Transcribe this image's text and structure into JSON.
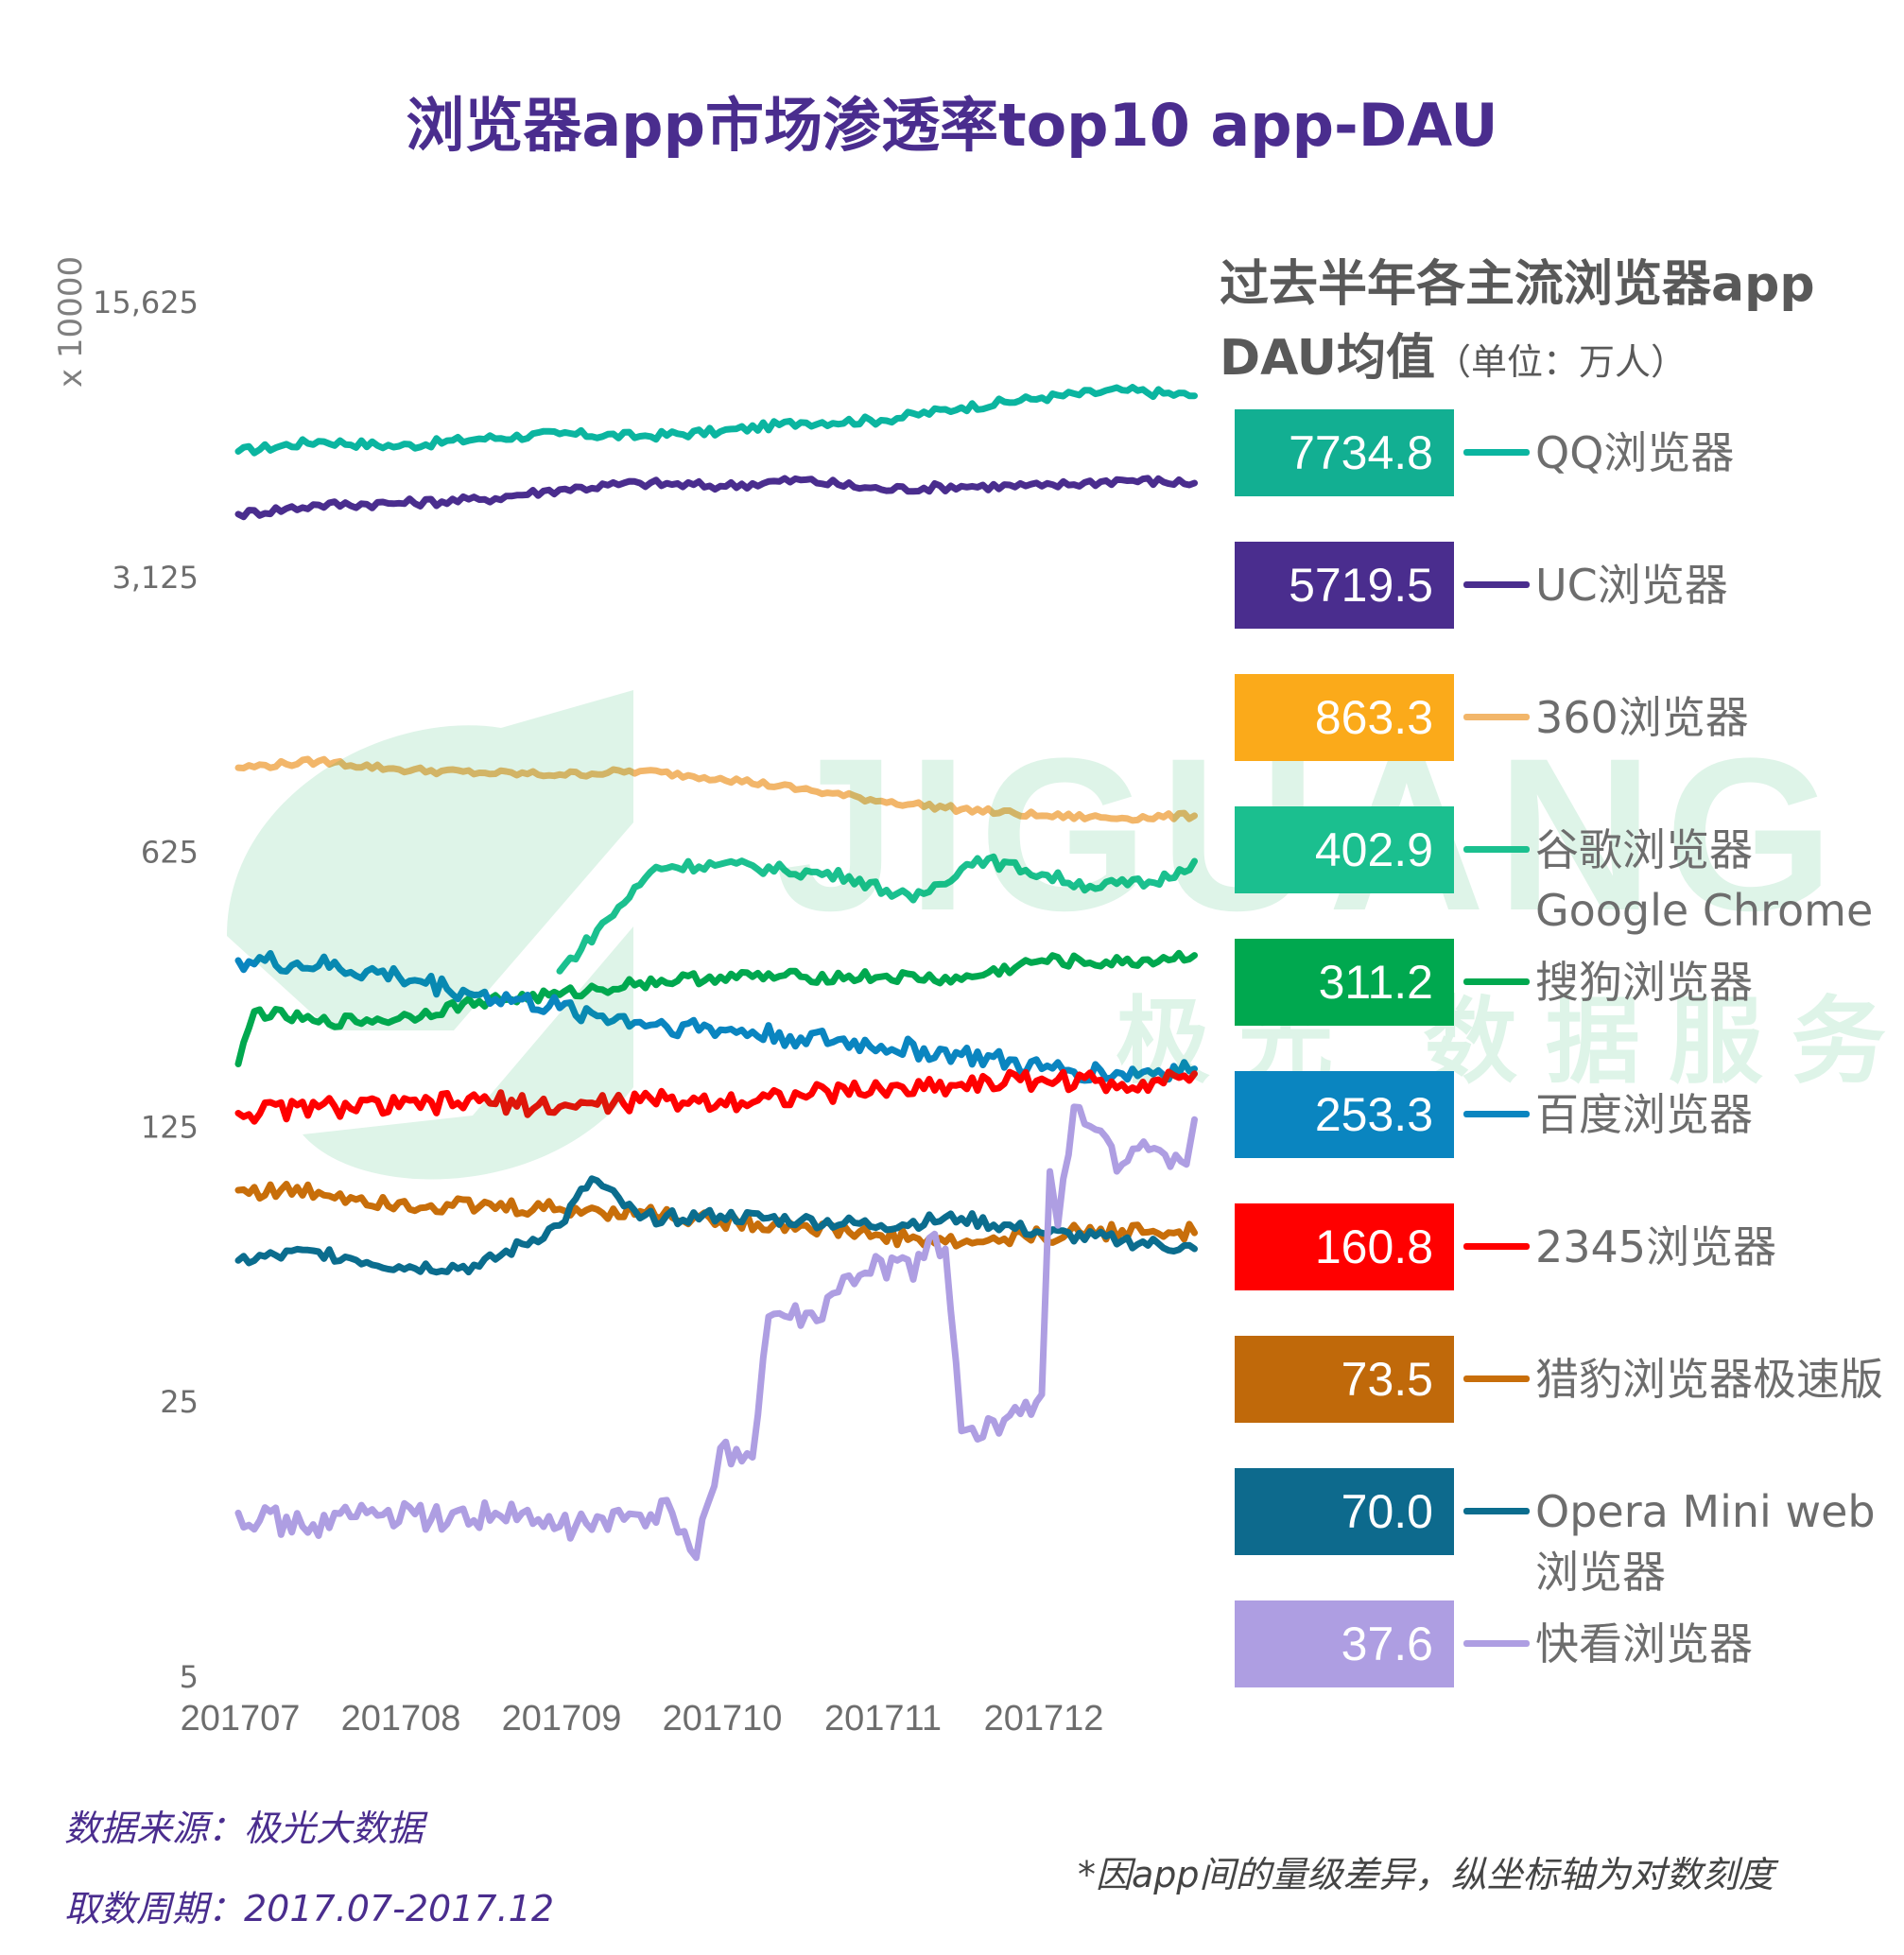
{
  "title": "浏览器app市场渗透率top10 app-DAU",
  "side_title_line1": "过去半年各主流浏览器app",
  "side_title_line2": "DAU均值",
  "side_title_unit": "（单位：万人）",
  "footer_source": "数据来源：极光大数据",
  "footer_period": "取数周期：2017.07-2017.12",
  "footer_note": "*因app间的量级差异，纵坐标轴为对数刻度",
  "watermark": {
    "text": "JIGUANG",
    "text_cn": "极光 数据服务"
  },
  "chart_data": {
    "type": "line",
    "title": "浏览器app市场渗透率top10 app-DAU",
    "yscale": "log",
    "ylabel": "x 10000",
    "ylim": [
      5,
      15625
    ],
    "yticks": [
      5,
      25,
      125,
      625,
      3125,
      15625
    ],
    "ytick_labels": [
      "5",
      "25",
      "125",
      "625",
      "3,125",
      "15,625"
    ],
    "xtick_labels": [
      "201707",
      "201708",
      "201709",
      "201710",
      "201711",
      "201712"
    ],
    "series": [
      {
        "name": "QQ浏览器",
        "mean": "7734.8",
        "color": "#0BB5A0",
        "box": "#12AF92",
        "points": [
          [
            0,
            6500
          ],
          [
            0.5,
            6900
          ],
          [
            1,
            6700
          ],
          [
            1.5,
            7000
          ],
          [
            2,
            7200
          ],
          [
            2.5,
            7100
          ],
          [
            3,
            7300
          ],
          [
            3.5,
            7700
          ],
          [
            4,
            7800
          ],
          [
            4.5,
            8400
          ],
          [
            5,
            8900
          ],
          [
            5.5,
            9300
          ],
          [
            5.95,
            9000
          ]
        ]
      },
      {
        "name": "UC浏览器",
        "mean": "5719.5",
        "color": "#4A2D8E",
        "box": "#4A2D8E",
        "points": [
          [
            0,
            4500
          ],
          [
            0.5,
            4750
          ],
          [
            1,
            4800
          ],
          [
            1.5,
            4900
          ],
          [
            2,
            5200
          ],
          [
            2.5,
            5400
          ],
          [
            3,
            5300
          ],
          [
            3.5,
            5500
          ],
          [
            4,
            5200
          ],
          [
            4.5,
            5300
          ],
          [
            5,
            5300
          ],
          [
            5.5,
            5500
          ],
          [
            5.95,
            5400
          ]
        ]
      },
      {
        "name": "360浏览器",
        "mean": "863.3",
        "color": "#F2B66A",
        "box": "#FBAA1A",
        "points": [
          [
            0,
            1020
          ],
          [
            0.5,
            1060
          ],
          [
            1,
            1010
          ],
          [
            1.5,
            990
          ],
          [
            2,
            980
          ],
          [
            2.5,
            1000
          ],
          [
            3,
            960
          ],
          [
            3.5,
            900
          ],
          [
            4,
            840
          ],
          [
            4.5,
            800
          ],
          [
            5,
            770
          ],
          [
            5.5,
            760
          ],
          [
            5.95,
            770
          ]
        ]
      },
      {
        "name": "谷歌浏览器 Google Chrome",
        "mean": "402.9",
        "color": "#1BC08F",
        "box": "#1BBF8F",
        "points": [
          [
            2,
            310
          ],
          [
            2.3,
            420
          ],
          [
            2.6,
            570
          ],
          [
            3,
            580
          ],
          [
            3.4,
            560
          ],
          [
            3.8,
            540
          ],
          [
            4.2,
            470
          ],
          [
            4.6,
            600
          ],
          [
            4.9,
            560
          ],
          [
            5.3,
            510
          ],
          [
            5.7,
            520
          ],
          [
            5.95,
            590
          ]
        ]
      },
      {
        "name": "搜狗浏览器",
        "mean": "311.2",
        "color": "#00A84F",
        "box": "#00A84F",
        "points": [
          [
            0,
            180
          ],
          [
            0.1,
            245
          ],
          [
            0.5,
            230
          ],
          [
            1,
            235
          ],
          [
            1.5,
            260
          ],
          [
            2,
            270
          ],
          [
            2.5,
            290
          ],
          [
            3,
            300
          ],
          [
            3.5,
            300
          ],
          [
            4,
            300
          ],
          [
            4.5,
            295
          ],
          [
            5,
            330
          ],
          [
            5.5,
            325
          ],
          [
            5.95,
            340
          ]
        ]
      },
      {
        "name": "百度浏览器",
        "mean": "253.3",
        "color": "#0A85C0",
        "box": "#0A85C0",
        "points": [
          [
            0,
            330
          ],
          [
            0.5,
            320
          ],
          [
            1,
            300
          ],
          [
            1.5,
            270
          ],
          [
            2,
            250
          ],
          [
            2.5,
            230
          ],
          [
            3,
            220
          ],
          [
            3.5,
            210
          ],
          [
            4,
            200
          ],
          [
            4.5,
            190
          ],
          [
            5,
            175
          ],
          [
            5.5,
            170
          ],
          [
            5.95,
            175
          ]
        ]
      },
      {
        "name": "2345浏览器",
        "mean": "160.8",
        "color": "#FF0000",
        "box": "#FF0000",
        "points": [
          [
            0,
            135
          ],
          [
            0.5,
            140
          ],
          [
            1,
            140
          ],
          [
            1.5,
            145
          ],
          [
            2,
            140
          ],
          [
            2.5,
            145
          ],
          [
            3,
            145
          ],
          [
            3.5,
            150
          ],
          [
            4,
            155
          ],
          [
            4.5,
            160
          ],
          [
            5,
            165
          ],
          [
            5.5,
            160
          ],
          [
            5.95,
            170
          ]
        ]
      },
      {
        "name": "猎豹浏览器极速版",
        "mean": "73.5",
        "color": "#C86E0A",
        "box": "#C0690A",
        "points": [
          [
            0,
            86
          ],
          [
            0.5,
            85
          ],
          [
            1,
            80
          ],
          [
            1.5,
            78
          ],
          [
            2,
            77
          ],
          [
            2.5,
            76
          ],
          [
            3,
            72
          ],
          [
            3.5,
            70
          ],
          [
            4,
            66
          ],
          [
            4.5,
            63
          ],
          [
            5,
            66
          ],
          [
            5.5,
            68
          ],
          [
            5.95,
            67
          ]
        ]
      },
      {
        "name": "Opera Mini web浏览器",
        "mean": "70.0",
        "color": "#0B6D8E",
        "box": "#0D6A8D",
        "points": [
          [
            0,
            57
          ],
          [
            0.5,
            60
          ],
          [
            1,
            55
          ],
          [
            1.5,
            55
          ],
          [
            2,
            70
          ],
          [
            2.2,
            92
          ],
          [
            2.5,
            73
          ],
          [
            3,
            74
          ],
          [
            3.5,
            72
          ],
          [
            4,
            70
          ],
          [
            4.5,
            73
          ],
          [
            5,
            67
          ],
          [
            5.5,
            64
          ],
          [
            5.95,
            61
          ]
        ]
      },
      {
        "name": "快看浏览器",
        "mean": "37.6",
        "color": "#AE9EE2",
        "box": "#AE9EE2",
        "points": [
          [
            0,
            13
          ],
          [
            0.4,
            12
          ],
          [
            0.8,
            13
          ],
          [
            1.2,
            12.5
          ],
          [
            1.6,
            13
          ],
          [
            2,
            12
          ],
          [
            2.4,
            12.5
          ],
          [
            2.7,
            13
          ],
          [
            2.85,
            10
          ],
          [
            3,
            19
          ],
          [
            3.2,
            18
          ],
          [
            3.3,
            41
          ],
          [
            3.6,
            40
          ],
          [
            3.7,
            47
          ],
          [
            3.9,
            53
          ],
          [
            4.1,
            57
          ],
          [
            4.2,
            51
          ],
          [
            4.3,
            65
          ],
          [
            4.4,
            61
          ],
          [
            4.5,
            21
          ],
          [
            4.6,
            20
          ],
          [
            4.8,
            23
          ],
          [
            5,
            26
          ],
          [
            5.05,
            96
          ],
          [
            5.1,
            70
          ],
          [
            5.2,
            140
          ],
          [
            5.3,
            125
          ],
          [
            5.5,
            100
          ],
          [
            5.7,
            110
          ],
          [
            5.9,
            100
          ],
          [
            5.95,
            130
          ]
        ]
      }
    ]
  }
}
